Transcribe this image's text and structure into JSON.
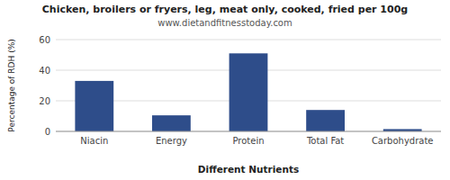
{
  "chart_data": {
    "type": "bar",
    "title": "Chicken, broilers or fryers, leg, meat only, cooked, fried per 100g",
    "subtitle": "www.dietandfitnesstoday.com",
    "categories": [
      "Niacin",
      "Energy",
      "Protein",
      "Total Fat",
      "Carbohydrate"
    ],
    "values": [
      33,
      10.5,
      51,
      14,
      1.5
    ],
    "color": "#2e4d8a",
    "xlabel": "Different Nutrients",
    "ylabel": "Percentage of RDH (%)",
    "ylim": [
      0,
      60
    ],
    "yticks": [
      0,
      20,
      40,
      60
    ],
    "grid": true
  }
}
